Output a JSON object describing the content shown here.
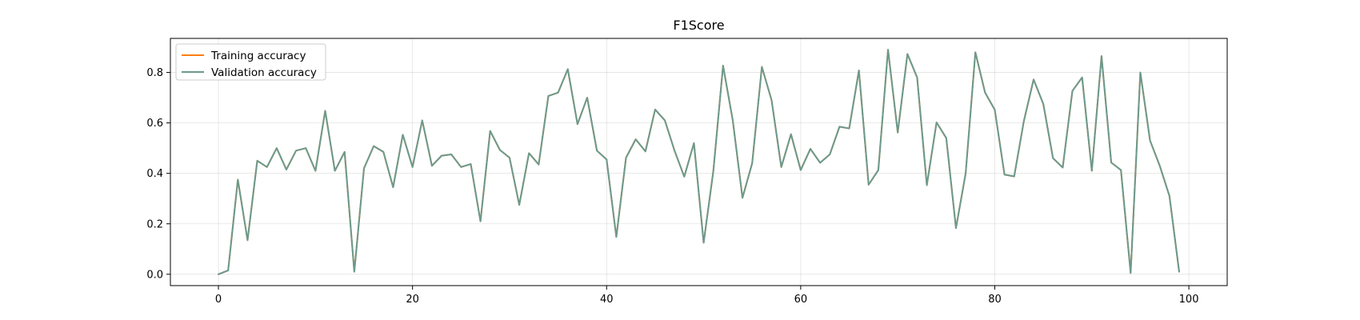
{
  "chart_data": {
    "type": "line",
    "title": "F1Score",
    "xlabel": "",
    "ylabel": "",
    "xlim": [
      -4.95,
      103.95
    ],
    "ylim": [
      -0.045,
      0.935
    ],
    "xticks": [
      0,
      20,
      40,
      60,
      80,
      100
    ],
    "yticks": [
      0.0,
      0.2,
      0.4,
      0.6,
      0.8
    ],
    "xtick_labels": [
      "0",
      "20",
      "40",
      "60",
      "80",
      "100"
    ],
    "ytick_labels": [
      "0.0",
      "0.2",
      "0.4",
      "0.6",
      "0.8"
    ],
    "grid": true,
    "legend_position": "top-left",
    "x": [
      0,
      1,
      2,
      3,
      4,
      5,
      6,
      7,
      8,
      9,
      10,
      11,
      12,
      13,
      14,
      15,
      16,
      17,
      18,
      19,
      20,
      21,
      22,
      23,
      24,
      25,
      26,
      27,
      28,
      29,
      30,
      31,
      32,
      33,
      34,
      35,
      36,
      37,
      38,
      39,
      40,
      41,
      42,
      43,
      44,
      45,
      46,
      47,
      48,
      49,
      50,
      51,
      52,
      53,
      54,
      55,
      56,
      57,
      58,
      59,
      60,
      61,
      62,
      63,
      64,
      65,
      66,
      67,
      68,
      69,
      70,
      71,
      72,
      73,
      74,
      75,
      76,
      77,
      78,
      79,
      80,
      81,
      82,
      83,
      84,
      85,
      86,
      87,
      88,
      89,
      90,
      91,
      92,
      93,
      94,
      95,
      96,
      97,
      98,
      99
    ],
    "series": [
      {
        "name": "Training accuracy",
        "color": "#ff7f0e",
        "values": [
          0.0,
          0.015,
          0.375,
          0.135,
          0.45,
          0.425,
          0.5,
          0.415,
          0.49,
          0.5,
          0.41,
          0.648,
          0.41,
          0.485,
          0.01,
          0.42,
          0.508,
          0.485,
          0.345,
          0.553,
          0.425,
          0.61,
          0.43,
          0.47,
          0.475,
          0.425,
          0.437,
          0.21,
          0.568,
          0.493,
          0.462,
          0.275,
          0.48,
          0.435,
          0.707,
          0.72,
          0.813,
          0.595,
          0.7,
          0.49,
          0.455,
          0.148,
          0.462,
          0.535,
          0.487,
          0.653,
          0.61,
          0.49,
          0.387,
          0.52,
          0.125,
          0.41,
          0.827,
          0.61,
          0.303,
          0.44,
          0.822,
          0.69,
          0.425,
          0.555,
          0.413,
          0.497,
          0.442,
          0.475,
          0.585,
          0.578,
          0.808,
          0.355,
          0.413,
          0.89,
          0.562,
          0.873,
          0.78,
          0.353,
          0.602,
          0.54,
          0.183,
          0.4,
          0.88,
          0.72,
          0.652,
          0.395,
          0.388,
          0.608,
          0.772,
          0.675,
          0.46,
          0.423,
          0.727,
          0.78,
          0.41,
          0.865,
          0.443,
          0.413,
          0.005,
          0.8,
          0.53,
          0.43,
          0.31,
          0.01
        ]
      },
      {
        "name": "Validation accuracy",
        "color": "#6a9a8f",
        "values": [
          0.0,
          0.015,
          0.375,
          0.135,
          0.45,
          0.425,
          0.5,
          0.415,
          0.49,
          0.5,
          0.41,
          0.648,
          0.41,
          0.485,
          0.01,
          0.42,
          0.508,
          0.485,
          0.345,
          0.553,
          0.425,
          0.61,
          0.43,
          0.47,
          0.475,
          0.425,
          0.437,
          0.21,
          0.568,
          0.493,
          0.462,
          0.275,
          0.48,
          0.435,
          0.707,
          0.72,
          0.813,
          0.595,
          0.7,
          0.49,
          0.455,
          0.148,
          0.462,
          0.535,
          0.487,
          0.653,
          0.61,
          0.49,
          0.387,
          0.52,
          0.125,
          0.41,
          0.827,
          0.61,
          0.303,
          0.44,
          0.822,
          0.69,
          0.425,
          0.555,
          0.413,
          0.497,
          0.442,
          0.475,
          0.585,
          0.578,
          0.808,
          0.355,
          0.413,
          0.89,
          0.562,
          0.873,
          0.78,
          0.353,
          0.602,
          0.54,
          0.183,
          0.4,
          0.88,
          0.72,
          0.652,
          0.395,
          0.388,
          0.608,
          0.772,
          0.675,
          0.46,
          0.423,
          0.727,
          0.78,
          0.41,
          0.865,
          0.443,
          0.413,
          0.005,
          0.8,
          0.53,
          0.43,
          0.31,
          0.01
        ]
      }
    ]
  }
}
